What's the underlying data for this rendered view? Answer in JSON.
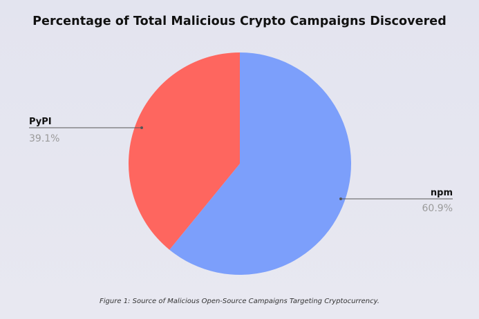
{
  "chart_data": {
    "type": "pie",
    "title": "Percentage of Total Malicious Crypto Campaigns Discovered",
    "slices": [
      {
        "label": "npm",
        "value": 60.9,
        "display": "60.9%",
        "color": "#7c9ffb"
      },
      {
        "label": "PyPI",
        "value": 39.1,
        "display": "39.1%",
        "color": "#fe665f"
      }
    ],
    "start_angle": "12 o'clock, clockwise",
    "legend": "none"
  },
  "caption": "Figure 1: Source of Malicious Open-Source Campaigns Targeting Cryptocurrency.",
  "colors": {
    "background": "#e5e5f0",
    "label_name": "#111111",
    "label_percent": "#9a9a9a",
    "leader_line": "#555555"
  }
}
